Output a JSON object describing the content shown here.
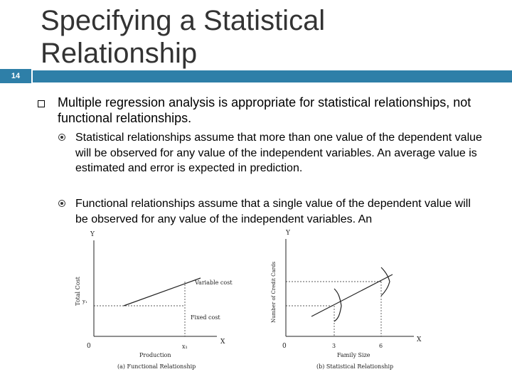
{
  "slide": {
    "number": "14",
    "title": "Specifying a Statistical Relationship"
  },
  "bullets": {
    "main": "Multiple regression analysis is appropriate for statistical relationships, not functional relationships.",
    "statistical": "Statistical relationships assume that more than one value of the dependent value will be observed for any value of the independent variables.  An average value is estimated and error is expected in prediction.",
    "functional": "Functional relationships assume that a single value of the dependent value will be observed for any value of the independent variables.  An"
  },
  "figure_a": {
    "y_axis": "Y",
    "x_axis": "X",
    "origin": "0",
    "ylabel": "Total Cost",
    "xlabel": "Production",
    "y1": "y₁",
    "x1": "x₁",
    "variable_cost": "Variable cost",
    "fixed_cost": "Fixed cost",
    "caption": "(a) Functional Relationship"
  },
  "figure_b": {
    "y_axis": "Y",
    "x_axis": "X",
    "origin": "0",
    "ylabel": "Number of Credit Cards",
    "xlabel": "Family Size",
    "tick_3": "3",
    "tick_6": "6",
    "caption": "(b) Statistical Relationship"
  },
  "colors": {
    "accent": "#2e7fa8",
    "title_text": "#333333"
  }
}
